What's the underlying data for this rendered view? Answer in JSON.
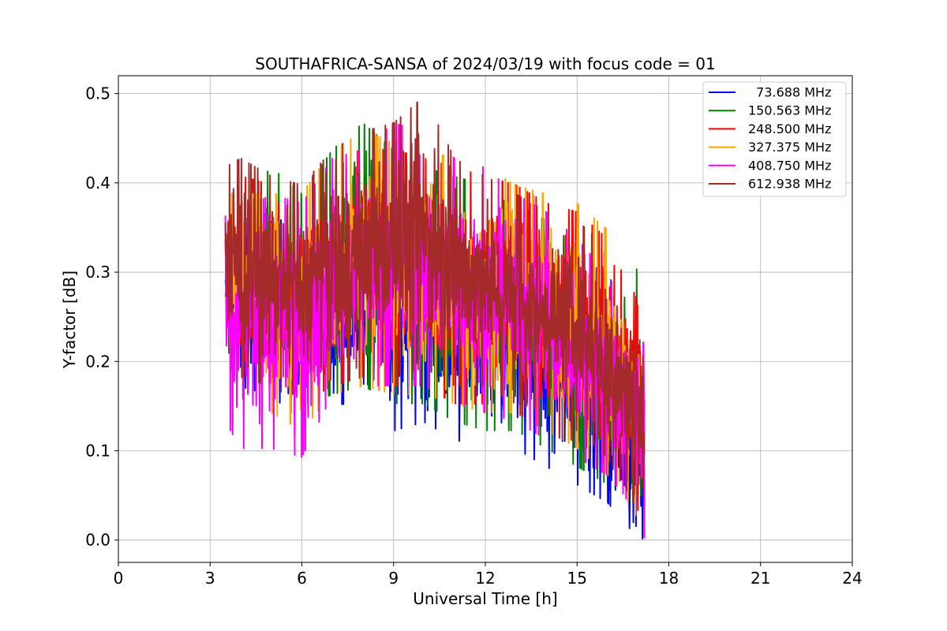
{
  "chart_data": {
    "type": "line",
    "title": "SOUTHAFRICA-SANSA of 2024/03/19 with focus code = 01",
    "xlabel": "Universal Time [h]",
    "ylabel": "Y-factor [dB]",
    "xlim": [
      0,
      24
    ],
    "ylim": [
      -0.025,
      0.52
    ],
    "xticks": [
      0,
      3,
      6,
      9,
      12,
      15,
      18,
      21,
      24
    ],
    "xtick_labels": [
      "0",
      "3",
      "6",
      "9",
      "12",
      "15",
      "18",
      "21",
      "24"
    ],
    "yticks": [
      0.0,
      0.1,
      0.2,
      0.3,
      0.4,
      0.5
    ],
    "ytick_labels": [
      "0.0",
      "0.1",
      "0.2",
      "0.3",
      "0.4",
      "0.5"
    ],
    "grid": true,
    "legend_position": "top-right",
    "series": [
      {
        "name": "  73.688 MHz",
        "color": "#0000ff",
        "x": [
          3.5,
          4,
          5,
          6,
          7,
          8,
          9,
          10,
          11,
          12,
          13,
          14,
          15,
          16,
          16.5,
          17,
          17.2
        ],
        "high": [
          0.37,
          0.36,
          0.37,
          0.34,
          0.36,
          0.36,
          0.35,
          0.34,
          0.33,
          0.33,
          0.32,
          0.3,
          0.27,
          0.22,
          0.18,
          0.16,
          0.14
        ],
        "low": [
          0.2,
          0.17,
          0.16,
          0.13,
          0.15,
          0.15,
          0.12,
          0.13,
          0.11,
          0.1,
          0.1,
          0.08,
          0.06,
          0.04,
          0.02,
          0.0,
          0.0
        ]
      },
      {
        "name": "150.563 MHz",
        "color": "#008000",
        "x": [
          3.5,
          4,
          5,
          6,
          7,
          8,
          9,
          10,
          11,
          12,
          13,
          14,
          15,
          16,
          16.5,
          17,
          17.2
        ],
        "high": [
          0.38,
          0.38,
          0.42,
          0.39,
          0.44,
          0.47,
          0.44,
          0.42,
          0.41,
          0.4,
          0.38,
          0.36,
          0.33,
          0.3,
          0.27,
          0.31,
          0.22
        ],
        "low": [
          0.21,
          0.2,
          0.18,
          0.15,
          0.16,
          0.17,
          0.15,
          0.15,
          0.13,
          0.12,
          0.12,
          0.1,
          0.08,
          0.06,
          0.04,
          0.02,
          0.0
        ]
      },
      {
        "name": "248.500 MHz",
        "color": "#ff0000",
        "x": [
          3.5,
          4,
          5,
          6,
          7,
          8,
          9,
          10,
          11,
          12,
          13,
          14,
          15,
          16,
          16.5,
          17,
          17.2
        ],
        "high": [
          0.4,
          0.41,
          0.4,
          0.4,
          0.43,
          0.44,
          0.44,
          0.43,
          0.42,
          0.41,
          0.4,
          0.38,
          0.37,
          0.34,
          0.3,
          0.32,
          0.25
        ],
        "low": [
          0.21,
          0.2,
          0.19,
          0.15,
          0.17,
          0.18,
          0.17,
          0.17,
          0.15,
          0.15,
          0.14,
          0.12,
          0.1,
          0.08,
          0.06,
          0.03,
          0.0
        ]
      },
      {
        "name": "327.375 MHz",
        "color": "#ffa500",
        "x": [
          3.5,
          4,
          5,
          6,
          7,
          8,
          9,
          10,
          11,
          12,
          13,
          14,
          15,
          16,
          16.5,
          17,
          17.2
        ],
        "high": [
          0.39,
          0.39,
          0.39,
          0.39,
          0.44,
          0.46,
          0.45,
          0.44,
          0.43,
          0.42,
          0.4,
          0.39,
          0.38,
          0.35,
          0.3,
          0.27,
          0.24
        ],
        "low": [
          0.2,
          0.18,
          0.14,
          0.12,
          0.16,
          0.17,
          0.16,
          0.16,
          0.15,
          0.14,
          0.14,
          0.12,
          0.1,
          0.07,
          0.05,
          0.02,
          0.0
        ]
      },
      {
        "name": "408.750 MHz",
        "color": "#ff00ff",
        "x": [
          3.5,
          4,
          5,
          6,
          7,
          8,
          9,
          10,
          11,
          12,
          13,
          14,
          15,
          16,
          16.5,
          17,
          17.2
        ],
        "high": [
          0.37,
          0.37,
          0.39,
          0.38,
          0.43,
          0.44,
          0.47,
          0.46,
          0.43,
          0.42,
          0.39,
          0.37,
          0.34,
          0.3,
          0.27,
          0.24,
          0.22
        ],
        "low": [
          0.13,
          0.1,
          0.1,
          0.09,
          0.16,
          0.17,
          0.17,
          0.17,
          0.15,
          0.14,
          0.13,
          0.11,
          0.09,
          0.07,
          0.05,
          0.02,
          0.0
        ]
      },
      {
        "name": "612.938 MHz",
        "color": "#a52a2a",
        "x": [
          3.5,
          4,
          5,
          6,
          7,
          8,
          9,
          10,
          11,
          12,
          13,
          14,
          15,
          16,
          16.5,
          17,
          17.2
        ],
        "high": [
          0.42,
          0.43,
          0.41,
          0.4,
          0.44,
          0.46,
          0.47,
          0.5,
          0.43,
          0.41,
          0.39,
          0.37,
          0.36,
          0.33,
          0.3,
          0.27,
          0.23
        ],
        "low": [
          0.2,
          0.18,
          0.17,
          0.15,
          0.17,
          0.18,
          0.18,
          0.19,
          0.17,
          0.17,
          0.15,
          0.14,
          0.12,
          0.09,
          0.06,
          0.03,
          0.0
        ]
      }
    ]
  }
}
